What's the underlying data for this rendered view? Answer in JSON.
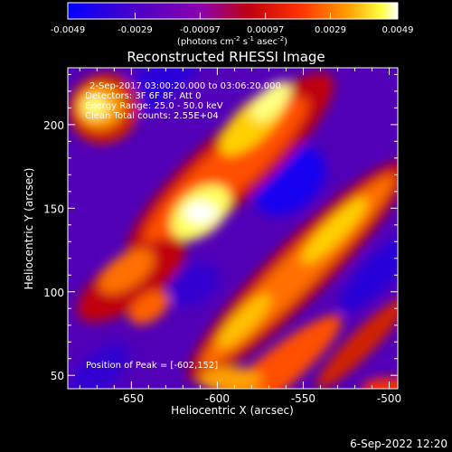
{
  "colorbar": {
    "tick_labels": [
      "-0.0049",
      "-0.0029",
      "-0.00097",
      "0.00097",
      "0.0029",
      "0.0049"
    ],
    "unit_label_main": "(photons cm",
    "unit_exp1": "-2",
    "unit_mid": " s",
    "unit_exp2": "-1",
    "unit_mid2": " asec",
    "unit_exp3": "-2",
    "unit_close": ")"
  },
  "chart_data": {
    "type": "heatmap",
    "title": "Reconstructed RHESSI Image",
    "xlabel": "Heliocentric X (arcsec)",
    "ylabel": "Heliocentric Y (arcsec)",
    "xlim": [
      -687,
      -495
    ],
    "ylim": [
      42,
      234
    ],
    "x_ticks": [
      -650,
      -600,
      -550,
      -500
    ],
    "y_ticks": [
      50,
      100,
      150,
      200
    ],
    "x_tick_labels": [
      "-650",
      "-600",
      "-550",
      "-500"
    ],
    "y_tick_labels": [
      "50",
      "100",
      "150",
      "200"
    ],
    "colorscale": [
      "#0000ff",
      "#4000c0",
      "#7a00c8",
      "#c00000",
      "#ff4000",
      "#ffa000",
      "#ffff00",
      "#ffffff"
    ],
    "crange": [
      -0.0049,
      0.0049
    ],
    "annotations": [
      "2-Sep-2017 03:00:20.000 to 03:06:20.000",
      "Detectors: 3F 6F 8F, Att 0",
      "Energy Range: 25.0 - 50.0 keV",
      "Clean   Total counts: 2.55E+04"
    ],
    "peak_label": "Position of Peak = [-602,152]",
    "peak": [
      -602,
      152
    ]
  },
  "footer_timestamp": "6-Sep-2022 12:20"
}
